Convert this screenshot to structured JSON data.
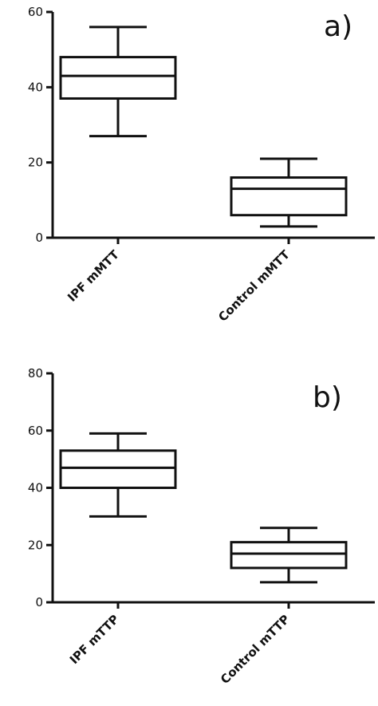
{
  "chart_data": [
    {
      "type": "box",
      "panel_label": "a)",
      "ylim": [
        0,
        60
      ],
      "yticks": [
        0,
        20,
        40,
        60
      ],
      "grid": false,
      "categories": [
        "IPF mMTT",
        "Control mMTT"
      ],
      "boxes": [
        {
          "category": "IPF mMTT",
          "whisker_low": 27,
          "q1": 37,
          "median": 43,
          "q3": 48,
          "whisker_high": 56
        },
        {
          "category": "Control mMTT",
          "whisker_low": 3,
          "q1": 6,
          "median": 13,
          "q3": 16,
          "whisker_high": 21
        }
      ]
    },
    {
      "type": "box",
      "panel_label": "b)",
      "ylim": [
        0,
        80
      ],
      "yticks": [
        0,
        20,
        40,
        60,
        80
      ],
      "grid": false,
      "categories": [
        "IPF mTTP",
        "Control mTTP"
      ],
      "boxes": [
        {
          "category": "IPF mTTP",
          "whisker_low": 30,
          "q1": 40,
          "median": 47,
          "q3": 53,
          "whisker_high": 59
        },
        {
          "category": "Control mTTP",
          "whisker_low": 7,
          "q1": 12,
          "median": 17,
          "q3": 21,
          "whisker_high": 26
        }
      ]
    }
  ]
}
